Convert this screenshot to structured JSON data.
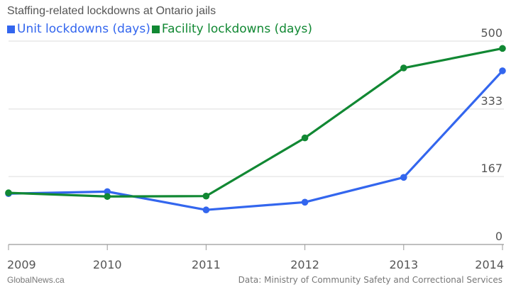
{
  "chart_data": {
    "type": "line",
    "title": "Staffing-related lockdowns at Ontario jails",
    "x": [
      "2009",
      "2010",
      "2011",
      "2012",
      "2013",
      "2014"
    ],
    "series": [
      {
        "name": "Unit lockdowns (days)",
        "color": "#3366ee",
        "values": [
          125,
          130,
          85,
          104,
          165,
          427
        ]
      },
      {
        "name": "Facility lockdowns (days)",
        "color": "#118833",
        "values": [
          127,
          118,
          119,
          262,
          434,
          482
        ]
      }
    ],
    "yticks": [
      "0",
      "167",
      "333",
      "500"
    ],
    "ylim": [
      0,
      500
    ],
    "grid": true,
    "legend_position": "top-left"
  },
  "footer": {
    "source_left": "GlobalNews.ca",
    "source_right": "Data: Ministry of Community Safety and Correctional Services"
  }
}
